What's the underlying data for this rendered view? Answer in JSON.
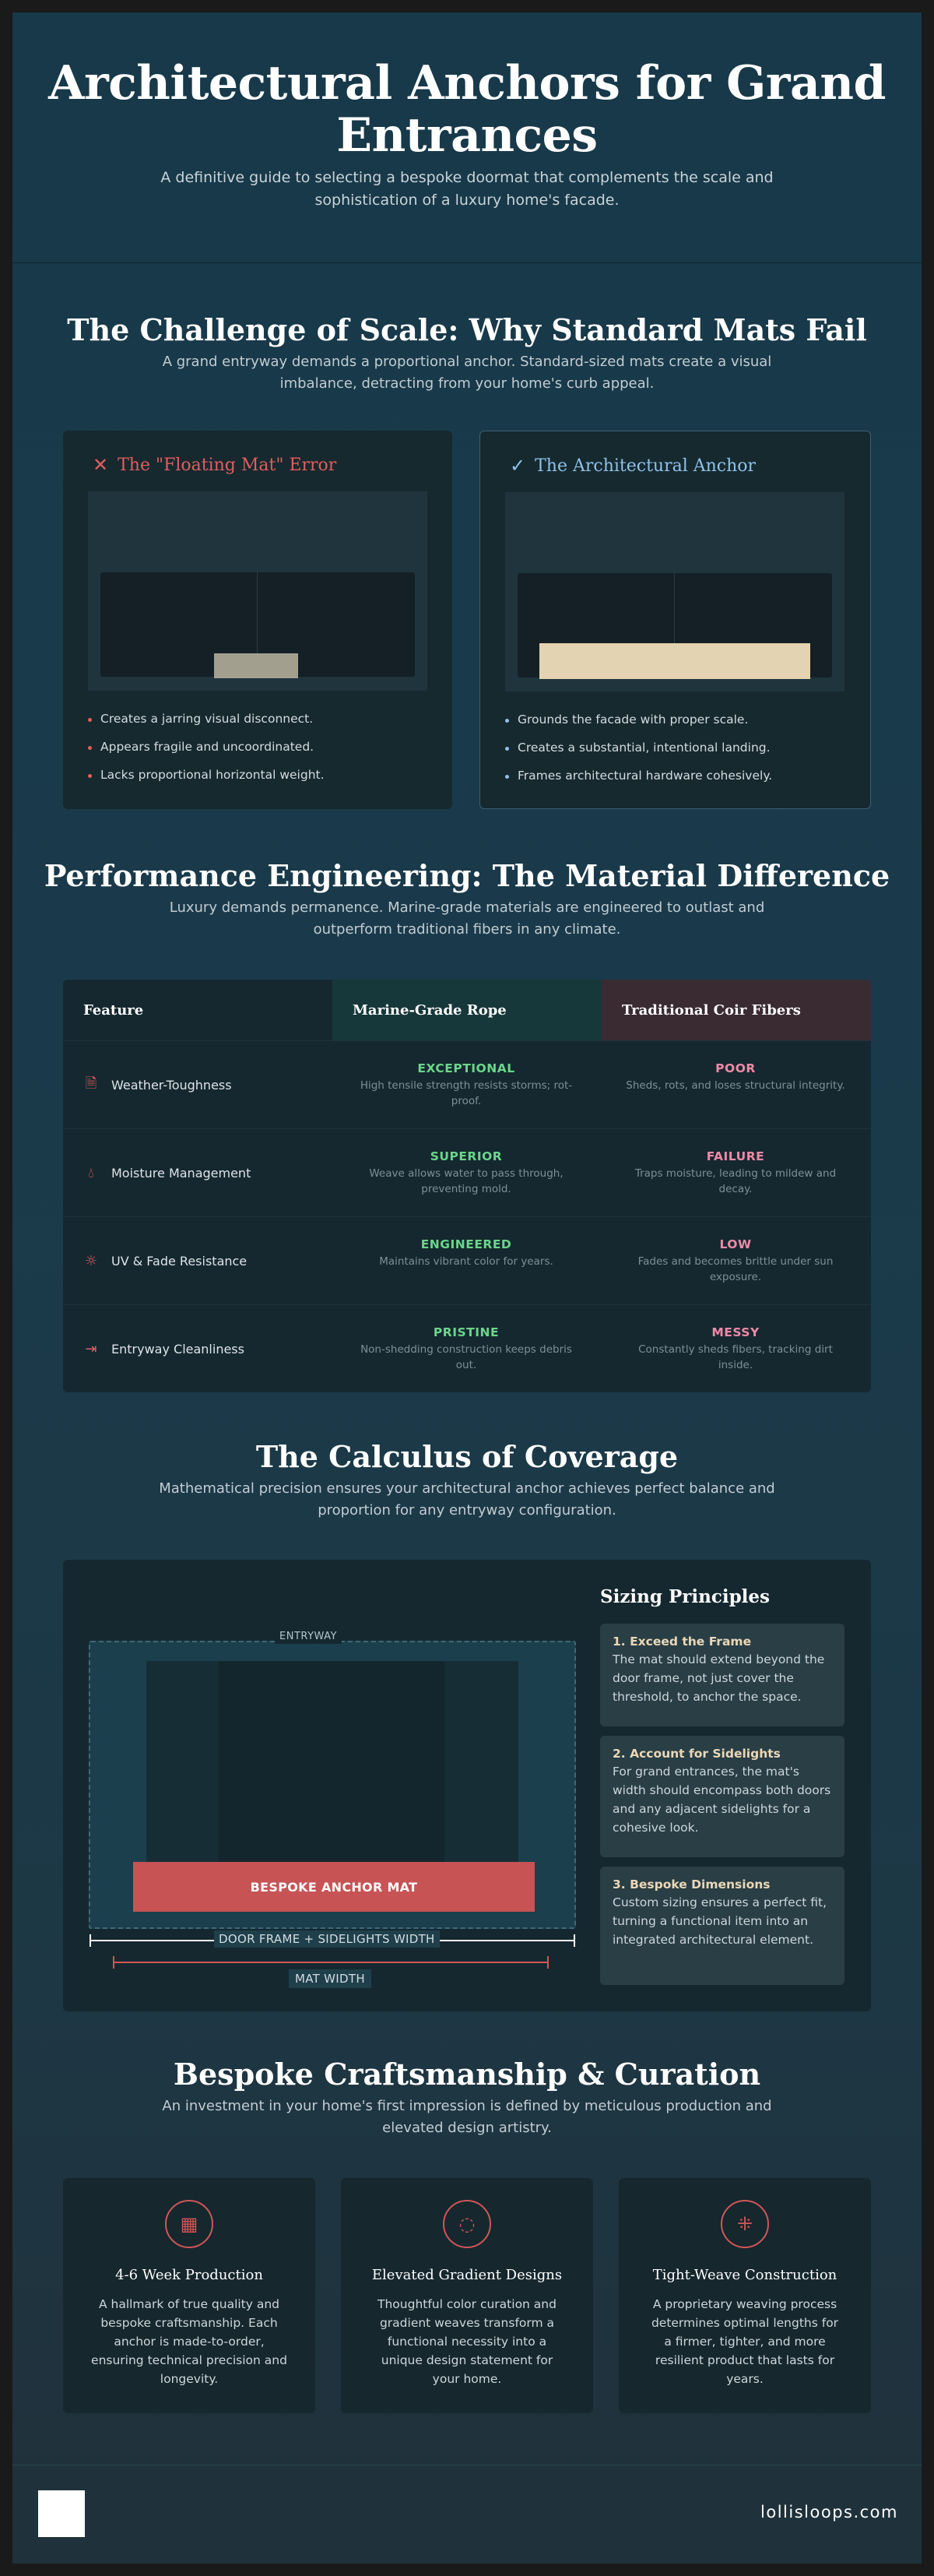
{
  "hero": {
    "title": "Architectural Anchors for Grand Entrances",
    "subtitle": "A definitive guide to selecting a bespoke doormat that complements the scale and sophistication of a luxury home's facade."
  },
  "challenge": {
    "title": "The Challenge of Scale: Why Standard Mats Fail",
    "subtitle": "A grand entryway demands a proportional anchor. Standard-sized mats create a visual imbalance, detracting from your home's curb appeal.",
    "bad": {
      "icon": "x-icon",
      "title": "The \"Floating Mat\" Error",
      "mat_width_ratio": 0.27,
      "bullets": [
        "Creates a jarring visual disconnect.",
        "Appears fragile and uncoordinated.",
        "Lacks proportional horizontal weight."
      ]
    },
    "good": {
      "icon": "check-icon",
      "title": "The Architectural Anchor",
      "mat_width_ratio": 0.86,
      "bullets": [
        "Grounds the facade with proper scale.",
        "Creates a substantial, intentional landing.",
        "Frames architectural hardware cohesively."
      ]
    },
    "colors": {
      "bad": "#e05e5e",
      "good": "#8fc1e8"
    }
  },
  "performance": {
    "title": "Performance Engineering: The Material Difference",
    "subtitle": "Luxury demands permanence. Marine-grade materials are engineered to outlast and outperform traditional fibers in any climate.",
    "headers": [
      "Feature",
      "Marine-Grade Rope",
      "Traditional Coir Fibers"
    ],
    "rows": [
      {
        "icon": "document-icon",
        "feature": "Weather-Toughness",
        "rope_value": "EXCEPTIONAL",
        "rope_desc": "High tensile strength resists storms; rot-proof.",
        "coir_value": "POOR",
        "coir_desc": "Sheds, rots, and loses structural integrity."
      },
      {
        "icon": "droplet-icon",
        "feature": "Moisture Management",
        "rope_value": "SUPERIOR",
        "rope_desc": "Weave allows water to pass through, preventing mold.",
        "coir_value": "FAILURE",
        "coir_desc": "Traps moisture, leading to mildew and decay."
      },
      {
        "icon": "sun-icon",
        "feature": "UV & Fade Resistance",
        "rope_value": "ENGINEERED",
        "rope_desc": "Maintains vibrant color for years.",
        "coir_value": "LOW",
        "coir_desc": "Fades and becomes brittle under sun exposure."
      },
      {
        "icon": "arrows-icon",
        "feature": "Entryway Cleanliness",
        "rope_value": "PRISTINE",
        "rope_desc": "Non-shedding construction keeps debris out.",
        "coir_value": "MESSY",
        "coir_desc": "Constantly sheds fibers, tracking dirt inside."
      }
    ]
  },
  "coverage": {
    "title": "The Calculus of Coverage",
    "subtitle": "Mathematical precision ensures your architectural anchor achieves perfect balance and proportion for any entryway configuration.",
    "entryway_label": "ENTRYWAY",
    "mat_label": "BESPOKE ANCHOR MAT",
    "frame_width_label": "DOOR FRAME + SIDELIGHTS WIDTH",
    "mat_width_label": "MAT WIDTH",
    "principles_title": "Sizing Principles",
    "principles": [
      {
        "title": "1. Exceed the Frame",
        "body": "The mat should extend beyond the door frame, not just cover the threshold, to anchor the space."
      },
      {
        "title": "2. Account for Sidelights",
        "body": "For grand entrances, the mat's width should encompass both doors and any adjacent sidelights for a cohesive look."
      },
      {
        "title": "3. Bespoke Dimensions",
        "body": "Custom sizing ensures a perfect fit, turning a functional item into an integrated architectural element."
      }
    ]
  },
  "craft": {
    "title": "Bespoke Craftsmanship & Curation",
    "subtitle": "An investment in your home's first impression is defined by meticulous production and elevated design artistry.",
    "cards": [
      {
        "icon": "calendar-icon",
        "title": "4-6 Week Production",
        "body": "A hallmark of true quality and bespoke craftsmanship. Each anchor is made-to-order, ensuring technical precision and longevity."
      },
      {
        "icon": "droplet-icon",
        "title": "Elevated Gradient Designs",
        "body": "Thoughtful color curation and gradient weaves transform a functional necessity into a unique design statement for your home."
      },
      {
        "icon": "weave-icon",
        "title": "Tight-Weave Construction",
        "body": "A proprietary weaving process determines optimal lengths for a firmer, tighter, and more resilient product that lasts for years."
      }
    ]
  },
  "footer": {
    "site": "lollisloops.com"
  }
}
